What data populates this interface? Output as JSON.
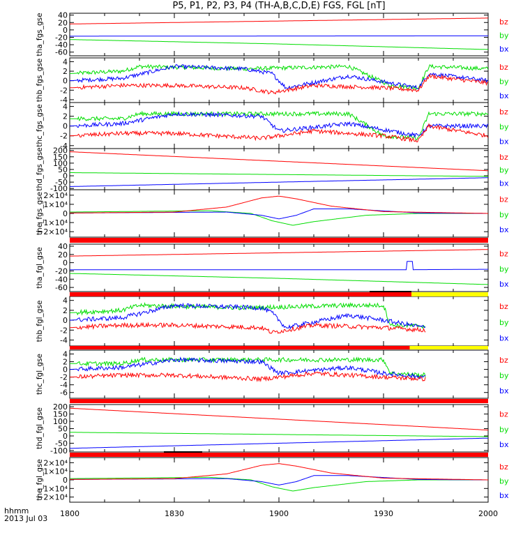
{
  "title": "P5, P1, P2, P3, P4 (TH-A,B,C,D,E) FGS, FGL [nT]",
  "x_axis": {
    "label_line1": "hhmm",
    "label_line2": "2013 Jul 03",
    "ticks": [
      "1800",
      "1830",
      "1900",
      "1930",
      "2000"
    ],
    "range_minutes": [
      0,
      120
    ]
  },
  "colors": {
    "bx": "#0000ff",
    "by": "#00dd00",
    "bz": "#ff0000",
    "flag_red": "#ff0000",
    "flag_yellow": "#ffff00",
    "flag_black": "#000000"
  },
  "chart_data": [
    {
      "type": "line",
      "ylabel": "tha_fgs_gse",
      "ylim": [
        -70,
        45
      ],
      "yticks": [
        "40",
        "20",
        "0",
        "-20",
        "-40",
        "-60"
      ],
      "ytick_values": [
        40,
        20,
        0,
        -20,
        -40,
        -60
      ],
      "legend": [
        "bz",
        "by",
        "bx"
      ],
      "series": [
        {
          "name": "bx",
          "x": [
            0,
            120
          ],
          "values": [
            -17,
            -16
          ]
        },
        {
          "name": "by",
          "x": [
            0,
            60,
            120
          ],
          "values": [
            -26,
            -38,
            -53
          ]
        },
        {
          "name": "bz",
          "x": [
            0,
            60,
            120
          ],
          "values": [
            16,
            24,
            32
          ]
        }
      ]
    },
    {
      "type": "line",
      "ylabel": "thb_fgs_gse",
      "ylim": [
        -4.6,
        4.8
      ],
      "yticks": [
        "4",
        "2",
        "0",
        "-2",
        "-4"
      ],
      "ytick_values": [
        4,
        2,
        0,
        -2,
        -4
      ],
      "legend": [
        "bz",
        "by",
        "bx"
      ],
      "series": [
        {
          "name": "bx",
          "x": [
            0,
            15,
            30,
            50,
            58,
            62,
            80,
            100,
            103,
            120
          ],
          "values": [
            0,
            0.5,
            3,
            2.5,
            1.5,
            -1.5,
            1,
            -1.5,
            1.5,
            0
          ]
        },
        {
          "name": "by",
          "x": [
            0,
            15,
            20,
            50,
            80,
            92,
            100,
            103,
            120
          ],
          "values": [
            1.5,
            2,
            3,
            2.5,
            3,
            -1,
            -1.5,
            3,
            2.5
          ]
        },
        {
          "name": "bz",
          "x": [
            0,
            15,
            30,
            50,
            58,
            70,
            90,
            100,
            103,
            120
          ],
          "values": [
            -1.5,
            -1,
            -1,
            -1.5,
            -2.5,
            -1,
            -1.5,
            -2,
            1,
            -0.5
          ]
        }
      ]
    },
    {
      "type": "line",
      "ylabel": "thc_fgs_gse",
      "ylim": [
        -4.6,
        4.8
      ],
      "yticks": [
        "4",
        "2",
        "0",
        "-2",
        "-4"
      ],
      "ytick_values": [
        4,
        2,
        0,
        -2,
        -4
      ],
      "legend": [
        "bz",
        "by",
        "bx"
      ],
      "series": [
        {
          "name": "bx",
          "x": [
            0,
            15,
            30,
            55,
            60,
            80,
            100,
            103,
            120
          ],
          "values": [
            0,
            0.5,
            2.5,
            2,
            -1,
            0.5,
            -2,
            0,
            0
          ]
        },
        {
          "name": "by",
          "x": [
            0,
            15,
            20,
            55,
            80,
            90,
            100,
            103,
            120
          ],
          "values": [
            1.5,
            1.5,
            2.5,
            2.5,
            2.5,
            -2,
            -2.5,
            2.5,
            2.5
          ]
        },
        {
          "name": "bz",
          "x": [
            0,
            15,
            30,
            55,
            70,
            90,
            100,
            103,
            120
          ],
          "values": [
            -2,
            -1.5,
            -1.5,
            -2.5,
            -1,
            -2,
            -3,
            0,
            -2
          ]
        }
      ]
    },
    {
      "type": "line",
      "ylabel": "thd_fgs_gse",
      "ylim": [
        -110,
        215
      ],
      "yticks": [
        "200",
        "150",
        "100",
        "50",
        "0",
        "-50",
        "-100"
      ],
      "ytick_values": [
        200,
        150,
        100,
        50,
        0,
        -50,
        -100
      ],
      "legend": [
        "bz",
        "by",
        "bx"
      ],
      "series": [
        {
          "name": "bx",
          "x": [
            0,
            120
          ],
          "values": [
            -85,
            -15
          ]
        },
        {
          "name": "by",
          "x": [
            0,
            120
          ],
          "values": [
            25,
            -5
          ]
        },
        {
          "name": "bz",
          "x": [
            0,
            120
          ],
          "values": [
            190,
            40
          ]
        }
      ]
    },
    {
      "type": "line",
      "ylabel": "the_fgs_gse",
      "ylim": [
        -26000,
        26000
      ],
      "yticks": [
        "2×10⁴",
        "1×10⁴",
        "0",
        "−1×10⁴",
        "−2×10⁴"
      ],
      "ytick_values": [
        20000,
        10000,
        0,
        -10000,
        -20000
      ],
      "legend": [
        "bz",
        "by",
        "bx"
      ],
      "series": [
        {
          "name": "bx",
          "x": [
            0,
            45,
            55,
            60,
            65,
            70,
            80,
            100,
            120
          ],
          "values": [
            500,
            1500,
            -2000,
            -6000,
            -2000,
            5000,
            5000,
            500,
            0
          ]
        },
        {
          "name": "by",
          "x": [
            0,
            40,
            52,
            58,
            64,
            70,
            85,
            100,
            120
          ],
          "values": [
            1500,
            3000,
            0,
            -8000,
            -13000,
            -9000,
            -2000,
            0,
            0
          ]
        },
        {
          "name": "bz",
          "x": [
            0,
            30,
            45,
            55,
            60,
            65,
            75,
            90,
            120
          ],
          "values": [
            500,
            1500,
            7000,
            17000,
            19000,
            16000,
            8000,
            2000,
            0
          ]
        }
      ]
    },
    {
      "type": "line",
      "ylabel": "tha_fgl_gse",
      "ylim": [
        -70,
        45
      ],
      "yticks": [
        "40",
        "20",
        "0",
        "-20",
        "-40",
        "-60"
      ],
      "ytick_values": [
        40,
        20,
        0,
        -20,
        -40,
        -60
      ],
      "legend": [
        "bz",
        "by",
        "bx"
      ],
      "series": [
        {
          "name": "bx",
          "x": [
            0,
            96.5,
            96.7,
            98.3,
            98.5,
            120
          ],
          "values": [
            -17,
            -17,
            3,
            3,
            -17,
            -16
          ]
        },
        {
          "name": "by",
          "x": [
            0,
            60,
            120
          ],
          "values": [
            -26,
            -38,
            -53
          ]
        },
        {
          "name": "bz",
          "x": [
            0,
            60,
            120
          ],
          "values": [
            16,
            24,
            32
          ]
        }
      ]
    },
    {
      "type": "line",
      "ylabel": "thb_fgl_gse",
      "ylim": [
        -5.2,
        4.8
      ],
      "yticks": [
        "4",
        "2",
        "0",
        "-2",
        "-4"
      ],
      "ytick_values": [
        4,
        2,
        0,
        -2,
        -4
      ],
      "legend": [
        "bz",
        "by",
        "bx"
      ],
      "series": [
        {
          "name": "bx",
          "x": [
            0,
            15,
            30,
            55,
            58,
            62,
            80,
            90,
            102
          ],
          "values": [
            0,
            0.5,
            3,
            2.5,
            1.5,
            -1.5,
            1,
            0,
            -1.5
          ]
        },
        {
          "name": "by",
          "x": [
            0,
            15,
            20,
            50,
            80,
            90,
            92,
            102
          ],
          "values": [
            1.5,
            2,
            3,
            2.5,
            3,
            3,
            -1,
            -1.2
          ]
        },
        {
          "name": "bz",
          "x": [
            0,
            15,
            30,
            55,
            58,
            70,
            90,
            102
          ],
          "values": [
            -1.5,
            -1,
            -1,
            -1.5,
            -2.5,
            -1,
            -1.5,
            -2
          ]
        }
      ]
    },
    {
      "type": "line",
      "ylabel": "thc_fgl_gse",
      "ylim": [
        -7.5,
        5
      ],
      "yticks": [
        "4",
        "2",
        "0",
        "-2",
        "-4",
        "-6"
      ],
      "ytick_values": [
        4,
        2,
        0,
        -2,
        -4,
        -6
      ],
      "legend": [
        "bz",
        "by",
        "bx"
      ],
      "series": [
        {
          "name": "bx",
          "x": [
            0,
            15,
            30,
            55,
            60,
            80,
            90,
            102
          ],
          "values": [
            0,
            0.5,
            2.5,
            2,
            -1,
            0.5,
            -1,
            -2
          ]
        },
        {
          "name": "by",
          "x": [
            0,
            15,
            20,
            55,
            80,
            90,
            92,
            102
          ],
          "values": [
            1.5,
            1.5,
            2.5,
            2.5,
            2.5,
            2.5,
            -1,
            -1.5
          ]
        },
        {
          "name": "bz",
          "x": [
            0,
            15,
            30,
            55,
            70,
            90,
            102
          ],
          "values": [
            -2,
            -1.5,
            -1.5,
            -2.5,
            -1,
            -2,
            -2.5
          ]
        }
      ]
    },
    {
      "type": "line",
      "ylabel": "thd_fgl_gse",
      "ylim": [
        -110,
        215
      ],
      "yticks": [
        "200",
        "150",
        "100",
        "50",
        "0",
        "-50",
        "-100"
      ],
      "ytick_values": [
        200,
        150,
        100,
        50,
        0,
        -50,
        -100
      ],
      "legend": [
        "bz",
        "by",
        "bx"
      ],
      "series": [
        {
          "name": "bx",
          "x": [
            0,
            120
          ],
          "values": [
            -85,
            -15
          ]
        },
        {
          "name": "by",
          "x": [
            0,
            120
          ],
          "values": [
            25,
            -5
          ]
        },
        {
          "name": "bz",
          "x": [
            0,
            120
          ],
          "values": [
            190,
            40
          ]
        }
      ]
    },
    {
      "type": "line",
      "ylabel": "the_fgl_gse",
      "ylim": [
        -26000,
        26000
      ],
      "yticks": [
        "2×10⁴",
        "1×10⁴",
        "0",
        "−1×10⁴",
        "−2×10⁴"
      ],
      "ytick_values": [
        20000,
        10000,
        0,
        -10000,
        -20000
      ],
      "legend": [
        "bz",
        "by",
        "bx"
      ],
      "series": [
        {
          "name": "bx",
          "x": [
            0,
            45,
            55,
            60,
            65,
            70,
            80,
            100,
            120
          ],
          "values": [
            500,
            1500,
            -2000,
            -6000,
            -2000,
            5000,
            5000,
            500,
            0
          ]
        },
        {
          "name": "by",
          "x": [
            0,
            40,
            52,
            58,
            64,
            70,
            85,
            100,
            120
          ],
          "values": [
            1500,
            3000,
            0,
            -8000,
            -13000,
            -9000,
            -2000,
            0,
            0
          ]
        },
        {
          "name": "bz",
          "x": [
            0,
            30,
            45,
            55,
            60,
            65,
            75,
            90,
            120
          ],
          "values": [
            500,
            1500,
            7000,
            17000,
            19000,
            16000,
            8000,
            2000,
            0
          ]
        }
      ]
    }
  ],
  "status_bars": [
    {
      "after_panel": 4,
      "segments": [
        {
          "x0": 0,
          "x1": 120,
          "color": "red"
        }
      ]
    },
    {
      "after_panel": 5,
      "segments": [
        {
          "x0": 0,
          "x1": 98,
          "color": "red"
        },
        {
          "x0": 98,
          "x1": 120,
          "color": "yellow"
        },
        {
          "x0": 86,
          "x1": 98,
          "color": "black",
          "thin": true
        }
      ]
    },
    {
      "after_panel": 6,
      "segments": [
        {
          "x0": 0,
          "x1": 97.5,
          "color": "red"
        },
        {
          "x0": 97.5,
          "x1": 120,
          "color": "yellow"
        }
      ]
    },
    {
      "after_panel": 7,
      "segments": [
        {
          "x0": 0,
          "x1": 120,
          "color": "red"
        }
      ]
    },
    {
      "after_panel": 8,
      "segments": [
        {
          "x0": 0,
          "x1": 120,
          "color": "red"
        },
        {
          "x0": 27,
          "x1": 38,
          "color": "black",
          "thin": true
        }
      ]
    }
  ]
}
